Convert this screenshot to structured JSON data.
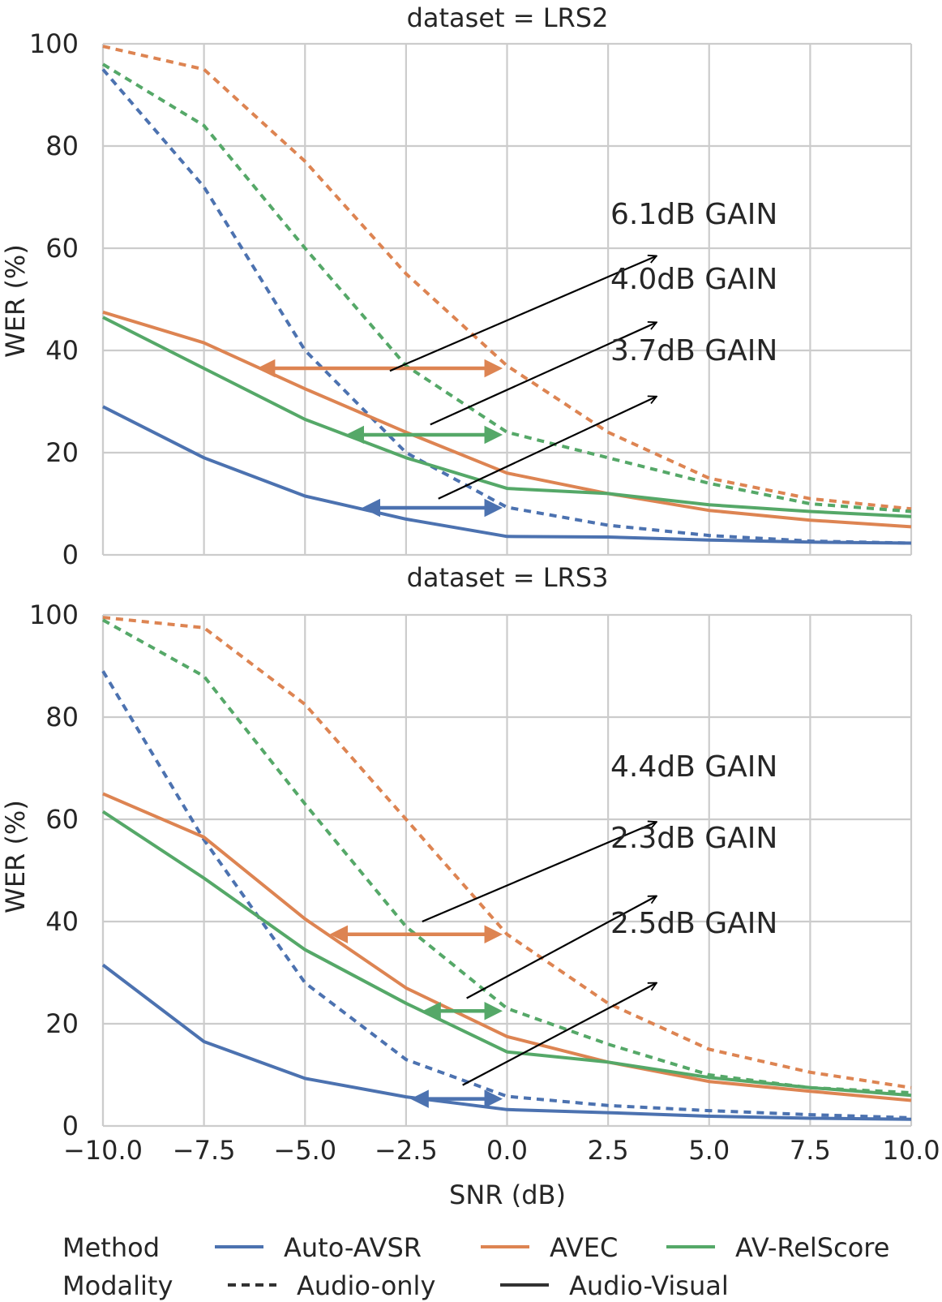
{
  "chart_data": {
    "type": "line",
    "xlabel": "SNR (dB)",
    "ylabel": "WER (%)",
    "x": [
      -10.0,
      -7.5,
      -5.0,
      -2.5,
      0.0,
      2.5,
      5.0,
      7.5,
      10.0
    ],
    "x_tick_labels": [
      "−10.0",
      "−7.5",
      "−5.0",
      "−2.5",
      "0.0",
      "2.5",
      "5.0",
      "7.5",
      "10.0"
    ],
    "y_ticks": [
      0,
      20,
      40,
      60,
      80,
      100
    ],
    "y_tick_labels": [
      "0",
      "20",
      "40",
      "60",
      "80",
      "100"
    ],
    "xlim": [
      -10,
      10
    ],
    "ylim": [
      0,
      100
    ],
    "grid": true,
    "colors": {
      "Auto-AVSR": "#4c72b0",
      "AVEC": "#dd8452",
      "AV-RelScore": "#55a868",
      "annotation": "#000000"
    },
    "panels": [
      {
        "title": "dataset = LRS2",
        "series": [
          {
            "method": "Auto-AVSR",
            "modality": "Audio-only",
            "values": [
              95,
              72,
              40,
              20,
              9.3,
              5.8,
              3.8,
              2.7,
              2.3
            ]
          },
          {
            "method": "AVEC",
            "modality": "Audio-only",
            "values": [
              99.5,
              95,
              77,
              55,
              37,
              24,
              15,
              11,
              9
            ]
          },
          {
            "method": "AV-RelScore",
            "modality": "Audio-only",
            "values": [
              96,
              84,
              60,
              37,
              24,
              19,
              14,
              10,
              8.5
            ]
          },
          {
            "method": "Auto-AVSR",
            "modality": "Audio-Visual",
            "values": [
              29,
              19,
              11.5,
              7,
              3.6,
              3.5,
              2.9,
              2.5,
              2.3
            ]
          },
          {
            "method": "AVEC",
            "modality": "Audio-Visual",
            "values": [
              47.5,
              41.5,
              32.5,
              24,
              16,
              12,
              8.7,
              6.8,
              5.5
            ]
          },
          {
            "method": "AV-RelScore",
            "modality": "Audio-Visual",
            "values": [
              46.5,
              36.5,
              26.5,
              19,
              13,
              12,
              9.8,
              8.5,
              7.5
            ]
          }
        ],
        "gain_arrows": [
          {
            "method": "AVEC",
            "from_snr": -6.1,
            "to_snr": -0.2,
            "wer": 36.5,
            "label": "6.1dB GAIN"
          },
          {
            "method": "AV-RelScore",
            "from_snr": -3.9,
            "to_snr": -0.2,
            "wer": 23.5,
            "label": "4.0dB GAIN"
          },
          {
            "method": "Auto-AVSR",
            "from_snr": -3.5,
            "to_snr": -0.2,
            "wer": 9.2,
            "label": "3.7dB GAIN"
          }
        ]
      },
      {
        "title": "dataset = LRS3",
        "series": [
          {
            "method": "Auto-AVSR",
            "modality": "Audio-only",
            "values": [
              89,
              56,
              28,
              13,
              5.8,
              4,
              3,
              2.2,
              1.6
            ]
          },
          {
            "method": "AVEC",
            "modality": "Audio-only",
            "values": [
              99.5,
              97.5,
              82.5,
              60,
              37.5,
              24,
              15,
              10.5,
              7.5
            ]
          },
          {
            "method": "AV-RelScore",
            "modality": "Audio-only",
            "values": [
              99,
              88,
              63,
              39,
              23,
              16,
              10,
              7.5,
              6.5
            ]
          },
          {
            "method": "Auto-AVSR",
            "modality": "Audio-Visual",
            "values": [
              31.5,
              16.5,
              9.3,
              5.7,
              3.2,
              2.6,
              1.9,
              1.5,
              1.3
            ]
          },
          {
            "method": "AVEC",
            "modality": "Audio-Visual",
            "values": [
              65,
              56.5,
              40.5,
              27,
              17.5,
              12.5,
              8.7,
              6.8,
              5
            ]
          },
          {
            "method": "AV-RelScore",
            "modality": "Audio-Visual",
            "values": [
              61.5,
              48.5,
              34.5,
              24,
              14.5,
              12.5,
              9.5,
              7.5,
              6
            ]
          }
        ],
        "gain_arrows": [
          {
            "method": "AVEC",
            "from_snr": -4.3,
            "to_snr": -0.2,
            "wer": 37.5,
            "label": "4.4dB GAIN"
          },
          {
            "method": "AV-RelScore",
            "from_snr": -2.0,
            "to_snr": -0.2,
            "wer": 22.5,
            "label": "2.3dB GAIN"
          },
          {
            "method": "Auto-AVSR",
            "from_snr": -2.3,
            "to_snr": -0.2,
            "wer": 5.3,
            "label": "2.5dB GAIN"
          }
        ]
      }
    ],
    "legend": {
      "placement": "bottom",
      "method_title": "Method",
      "method_entries": [
        "Auto-AVSR",
        "AVEC",
        "AV-RelScore"
      ],
      "modality_title": "Modality",
      "modality_entries": [
        "Audio-only",
        "Audio-Visual"
      ]
    }
  }
}
